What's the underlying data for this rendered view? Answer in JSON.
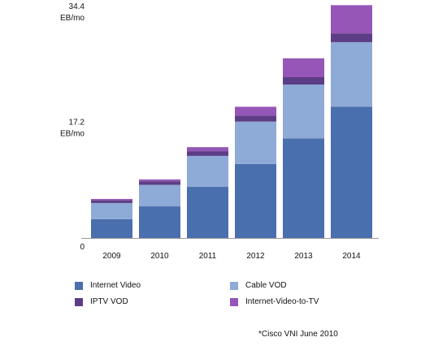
{
  "chart_data": {
    "type": "bar",
    "stacked": true,
    "categories": [
      "2009",
      "2010",
      "2011",
      "2012",
      "2013",
      "2014"
    ],
    "series": [
      {
        "name": "Internet Video",
        "color": "#4a6fae",
        "values": [
          2.8,
          4.7,
          7.6,
          11.0,
          14.8,
          19.5
        ]
      },
      {
        "name": "Cable VOD",
        "color": "#8eaad6",
        "values": [
          2.4,
          3.2,
          4.6,
          6.3,
          8.0,
          9.6
        ]
      },
      {
        "name": "IPTV VOD",
        "color": "#5d3d86",
        "values": [
          0.4,
          0.5,
          0.7,
          0.9,
          1.1,
          1.3
        ]
      },
      {
        "name": "Internet-Video-to-TV",
        "color": "#9556b8",
        "values": [
          0.2,
          0.3,
          0.6,
          1.3,
          2.8,
          4.2
        ]
      }
    ],
    "y_ticks": [
      {
        "value": 0,
        "label": "0"
      },
      {
        "value": 17.2,
        "label": "17.2",
        "unit": "EB/mo"
      },
      {
        "value": 34.4,
        "label": "34.4",
        "unit": "EB/mo"
      }
    ],
    "ylim": [
      0,
      34.4
    ],
    "grid": false,
    "legend_position": "bottom"
  },
  "footnote": "*Cisco VNI June 2010"
}
